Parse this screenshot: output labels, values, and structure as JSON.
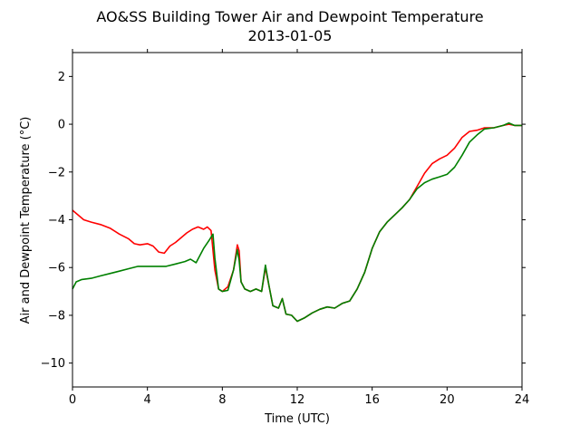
{
  "chart_data": {
    "type": "line",
    "title_line1": "AO&SS Building Tower Air and Dewpoint Temperature",
    "title_line2": "2013-01-05",
    "xlabel": "Time (UTC)",
    "ylabel": "Air and Dewpoint Temperature (°C)",
    "xlim": [
      0,
      24
    ],
    "ylim": [
      -11,
      3
    ],
    "xticks": [
      0,
      4,
      8,
      12,
      16,
      20,
      24
    ],
    "yticks": [
      2,
      0,
      -2,
      -4,
      -6,
      -8,
      -10
    ],
    "ytick_labels": [
      "2",
      "0",
      "−2",
      "−4",
      "−6",
      "−8",
      "−10"
    ],
    "grid": false,
    "series": [
      {
        "color": "#ff0000",
        "x": [
          0.0,
          0.3,
          0.6,
          1.0,
          1.5,
          2.0,
          2.5,
          3.0,
          3.3,
          3.6,
          4.0,
          4.3,
          4.6,
          4.9,
          5.2,
          5.5,
          5.8,
          6.1,
          6.4,
          6.7,
          7.0,
          7.2,
          7.4,
          7.6,
          7.8,
          8.0,
          8.3,
          8.6,
          8.8,
          8.9,
          9.0,
          9.2,
          9.5,
          9.8,
          10.1,
          10.3,
          10.5,
          10.7,
          11.0,
          11.2,
          11.4,
          11.7,
          12.0,
          12.4,
          12.8,
          13.2,
          13.6,
          14.0,
          14.4,
          14.8,
          15.2,
          15.6,
          16.0,
          16.4,
          16.8,
          17.2,
          17.6,
          18.0,
          18.4,
          18.8,
          19.2,
          19.6,
          20.0,
          20.4,
          20.8,
          21.2,
          21.6,
          22.0,
          22.5,
          23.0,
          23.3,
          23.6,
          24.0
        ],
        "y": [
          -3.6,
          -3.8,
          -4.0,
          -4.1,
          -4.2,
          -4.35,
          -4.6,
          -4.8,
          -5.0,
          -5.05,
          -5.0,
          -5.1,
          -5.35,
          -5.4,
          -5.1,
          -4.95,
          -4.75,
          -4.55,
          -4.4,
          -4.3,
          -4.4,
          -4.3,
          -4.45,
          -6.1,
          -6.9,
          -7.0,
          -6.8,
          -6.1,
          -5.05,
          -5.3,
          -6.6,
          -6.9,
          -7.0,
          -6.9,
          -7.0,
          -6.0,
          -6.8,
          -7.6,
          -7.7,
          -7.3,
          -7.95,
          -8.0,
          -8.25,
          -8.1,
          -7.9,
          -7.75,
          -7.65,
          -7.7,
          -7.5,
          -7.4,
          -6.9,
          -6.2,
          -5.2,
          -4.5,
          -4.1,
          -3.8,
          -3.5,
          -3.15,
          -2.6,
          -2.05,
          -1.65,
          -1.45,
          -1.3,
          -1.0,
          -0.55,
          -0.3,
          -0.25,
          -0.15,
          -0.15,
          -0.05,
          0.0,
          -0.05,
          -0.05
        ]
      },
      {
        "color": "#008000",
        "x": [
          0.0,
          0.2,
          0.5,
          1.0,
          1.5,
          2.0,
          2.5,
          3.0,
          3.5,
          4.0,
          4.5,
          5.0,
          5.5,
          6.0,
          6.3,
          6.6,
          7.0,
          7.3,
          7.5,
          7.6,
          7.8,
          8.0,
          8.3,
          8.6,
          8.8,
          8.9,
          9.0,
          9.2,
          9.5,
          9.8,
          10.1,
          10.3,
          10.5,
          10.7,
          11.0,
          11.2,
          11.4,
          11.7,
          12.0,
          12.4,
          12.8,
          13.2,
          13.6,
          14.0,
          14.4,
          14.8,
          15.2,
          15.6,
          16.0,
          16.4,
          16.8,
          17.2,
          17.6,
          18.0,
          18.4,
          18.8,
          19.2,
          19.6,
          20.0,
          20.4,
          20.8,
          21.2,
          21.6,
          22.0,
          22.5,
          23.0,
          23.3,
          23.6,
          24.0
        ],
        "y": [
          -6.9,
          -6.6,
          -6.5,
          -6.45,
          -6.35,
          -6.25,
          -6.15,
          -6.05,
          -5.95,
          -5.95,
          -5.95,
          -5.95,
          -5.85,
          -5.75,
          -5.65,
          -5.8,
          -5.2,
          -4.85,
          -4.6,
          -5.6,
          -6.9,
          -7.0,
          -6.95,
          -6.1,
          -5.25,
          -5.7,
          -6.6,
          -6.9,
          -7.0,
          -6.9,
          -7.0,
          -5.9,
          -6.8,
          -7.6,
          -7.7,
          -7.3,
          -7.95,
          -8.0,
          -8.25,
          -8.1,
          -7.9,
          -7.75,
          -7.65,
          -7.7,
          -7.5,
          -7.4,
          -6.9,
          -6.2,
          -5.2,
          -4.5,
          -4.1,
          -3.8,
          -3.5,
          -3.15,
          -2.7,
          -2.45,
          -2.3,
          -2.2,
          -2.1,
          -1.8,
          -1.3,
          -0.75,
          -0.45,
          -0.2,
          -0.15,
          -0.05,
          0.05,
          -0.05,
          -0.05
        ]
      }
    ]
  }
}
